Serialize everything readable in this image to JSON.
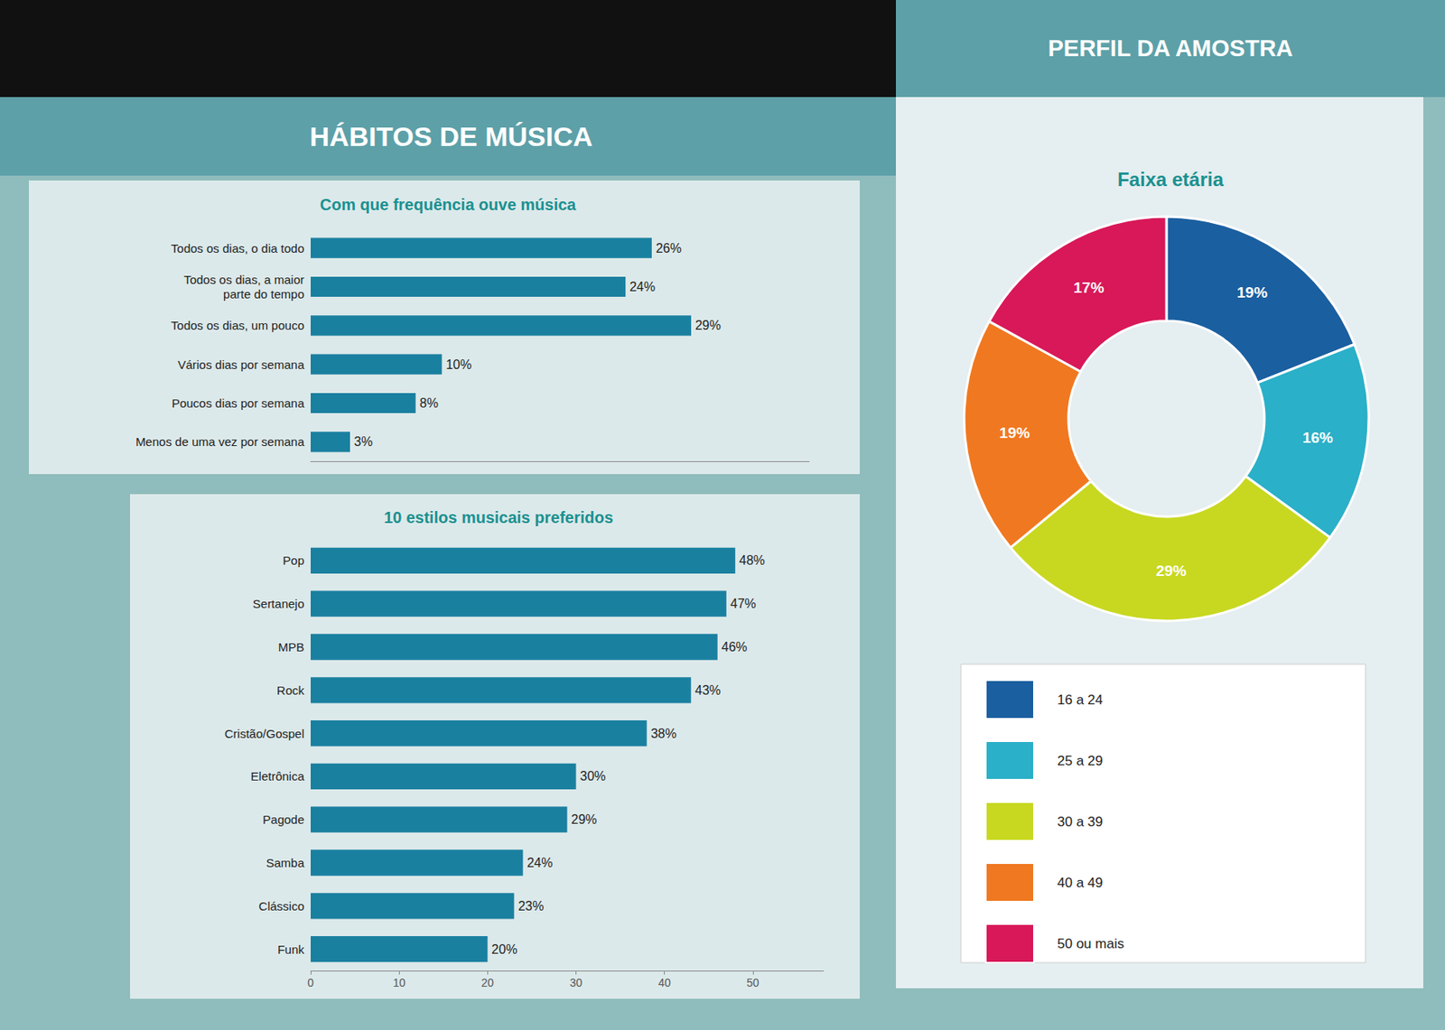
{
  "chart_data": [
    {
      "type": "bar",
      "orientation": "horizontal",
      "title": "Com que frequência ouve música",
      "annotations": [
        "HÁBITOS DE MÚSICA"
      ],
      "categories": [
        "Todos os dias, o dia todo",
        "Todos os dias, a maior\nparte do tempo",
        "Todos os dias, um pouco",
        "Vários dias por semana",
        "Poucos dias por semana",
        "Menos de uma vez por semana"
      ],
      "values": [
        26,
        24,
        29,
        10,
        8,
        3
      ],
      "value_labels": [
        "26%",
        "24%",
        "29%",
        "10%",
        "8%",
        "3%"
      ],
      "color": "#1a80a0",
      "xlim": [
        0,
        38
      ],
      "data_labels": true,
      "tick_labels": "y",
      "grid": false
    },
    {
      "type": "bar",
      "orientation": "horizontal",
      "title": "10 estilos musicais preferidos",
      "categories": [
        "Pop",
        "Sertanejo",
        "MPB",
        "Rock",
        "Cristão/Gospel",
        "Eletrônica",
        "Pagode",
        "Samba",
        "Clássico",
        "Funk"
      ],
      "values": [
        48,
        47,
        46,
        43,
        38,
        30,
        29,
        24,
        23,
        20
      ],
      "value_labels": [
        "48%",
        "47%",
        "46%",
        "43%",
        "38%",
        "30%",
        "29%",
        "24%",
        "23%",
        "20%"
      ],
      "color": "#1a80a0",
      "xlim": [
        0,
        58
      ],
      "xticks": [
        0,
        10,
        20,
        30,
        40,
        50
      ],
      "data_labels": true,
      "grid": false
    },
    {
      "type": "pie",
      "title": "Faixa etária",
      "annotations": [
        "PERFIL DA AMOSTRA"
      ],
      "categories": [
        "16 a 24",
        "25 a 29",
        "30 a 39",
        "40 a 49",
        "50 ou mais"
      ],
      "values": [
        19,
        16,
        29,
        19,
        17
      ],
      "value_labels": [
        "19%",
        "16%",
        "29%",
        "19%",
        "17%"
      ],
      "colors": [
        "#1a5fa0",
        "#2ab0c8",
        "#c8d820",
        "#f07820",
        "#d81858"
      ],
      "data_labels": true,
      "legend": "bottom"
    }
  ]
}
